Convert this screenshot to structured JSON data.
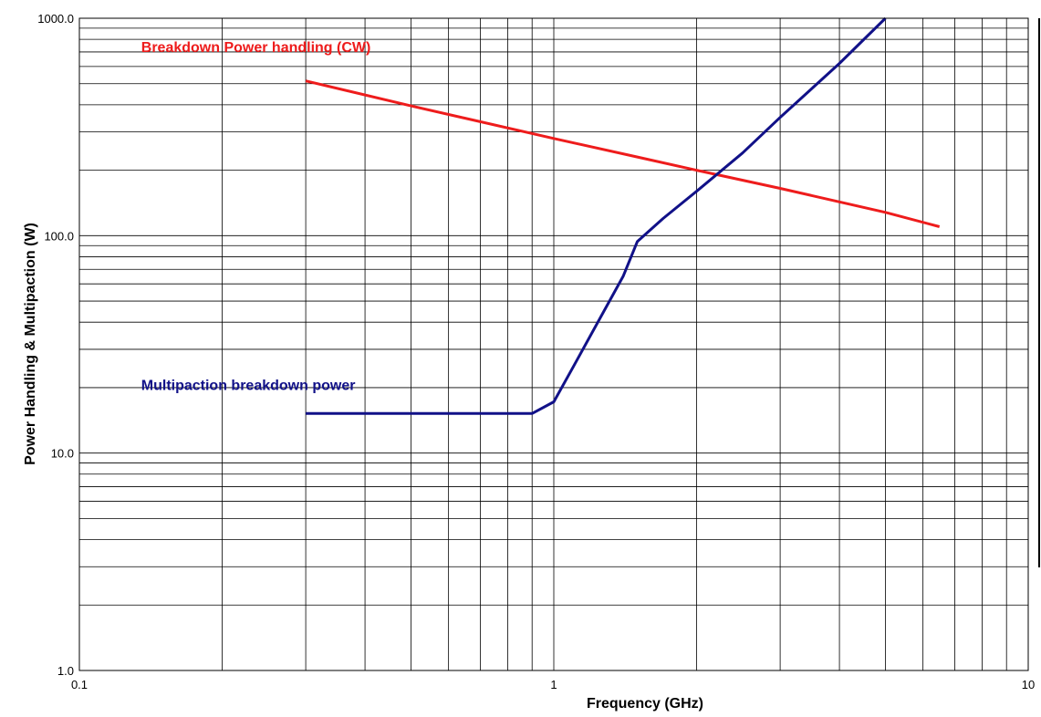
{
  "chart_data": {
    "type": "line",
    "title": "",
    "xlabel": "Frequency (GHz)",
    "ylabel": "Power Handling & Multipaction (W)",
    "x_scale": "log",
    "y_scale": "log",
    "xlim": [
      0.1,
      10
    ],
    "ylim": [
      1.0,
      1000.0
    ],
    "grid": true,
    "x_tick_labels": [
      {
        "value": 0.1,
        "label": "0.1"
      },
      {
        "value": 1,
        "label": "1"
      },
      {
        "value": 10,
        "label": "10"
      }
    ],
    "y_tick_labels": [
      {
        "value": 1,
        "label": "1.0"
      },
      {
        "value": 10,
        "label": "10.0"
      },
      {
        "value": 100,
        "label": "100.0"
      },
      {
        "value": 1000,
        "label": "1000.0"
      }
    ],
    "series": [
      {
        "name": "Breakdown Power handling (CW)",
        "color": "#ee1c1c",
        "label_anchor": {
          "x": 0.135,
          "y": 700
        },
        "points": [
          {
            "x": 0.3,
            "y": 515
          },
          {
            "x": 0.5,
            "y": 395
          },
          {
            "x": 1.0,
            "y": 280
          },
          {
            "x": 1.5,
            "y": 230
          },
          {
            "x": 2.0,
            "y": 200
          },
          {
            "x": 3.0,
            "y": 165
          },
          {
            "x": 5.0,
            "y": 128
          },
          {
            "x": 6.5,
            "y": 110
          }
        ]
      },
      {
        "name": "Multipaction breakdown power",
        "color": "#111188",
        "label_anchor": {
          "x": 0.135,
          "y": 19.5
        },
        "points": [
          {
            "x": 0.3,
            "y": 15.2
          },
          {
            "x": 0.9,
            "y": 15.2
          },
          {
            "x": 1.0,
            "y": 17.2
          },
          {
            "x": 1.1,
            "y": 25
          },
          {
            "x": 1.4,
            "y": 65
          },
          {
            "x": 1.5,
            "y": 94
          },
          {
            "x": 1.7,
            "y": 120
          },
          {
            "x": 2.0,
            "y": 160
          },
          {
            "x": 2.5,
            "y": 240
          },
          {
            "x": 3.0,
            "y": 350
          },
          {
            "x": 4.0,
            "y": 620
          },
          {
            "x": 5.0,
            "y": 1000
          }
        ]
      }
    ]
  }
}
